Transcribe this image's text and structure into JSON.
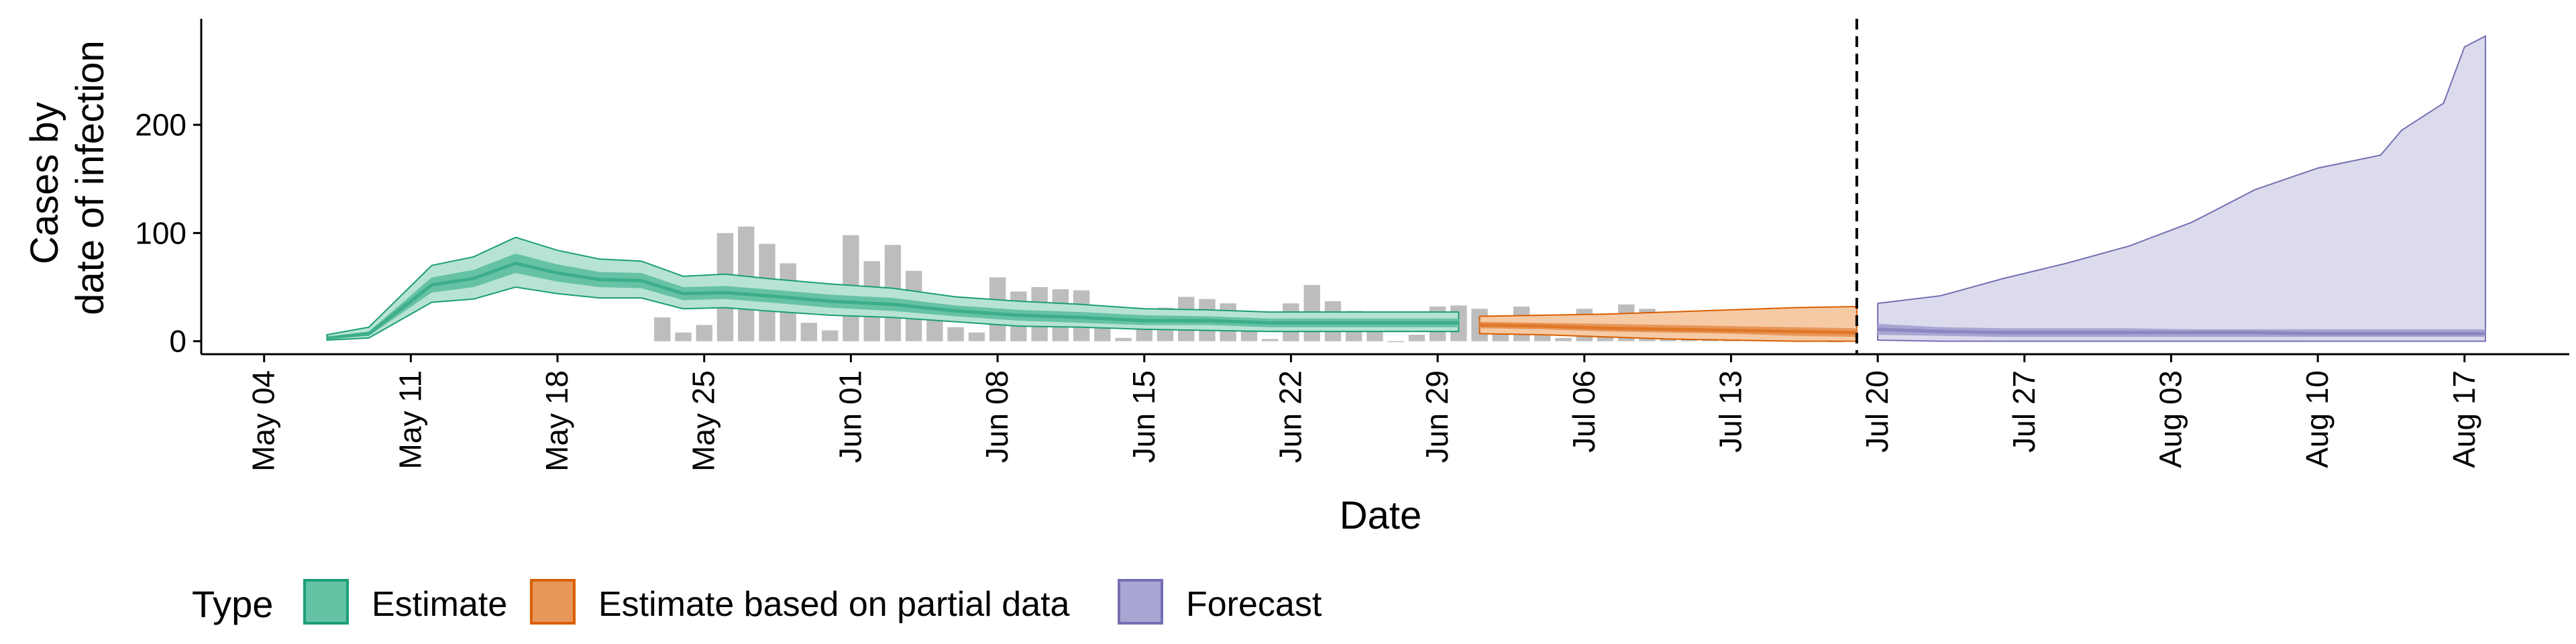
{
  "chart_data": {
    "type": "area",
    "xlabel": "Date",
    "ylabel_lines": [
      "Cases by",
      "date of infection"
    ],
    "xlim": [
      "2020-05-01",
      "2020-08-22"
    ],
    "ylim": [
      -12,
      298
    ],
    "y_ticks": [
      0,
      100,
      200
    ],
    "x_ticks": [
      "2020-05-04",
      "2020-05-11",
      "2020-05-18",
      "2020-05-25",
      "2020-06-01",
      "2020-06-08",
      "2020-06-15",
      "2020-06-22",
      "2020-06-29",
      "2020-07-06",
      "2020-07-13",
      "2020-07-20",
      "2020-07-27",
      "2020-08-03",
      "2020-08-10",
      "2020-08-17"
    ],
    "x_tick_labels": [
      "May 04",
      "May 11",
      "May 18",
      "May 25",
      "Jun 01",
      "Jun 08",
      "Jun 15",
      "Jun 22",
      "Jun 29",
      "Jul 06",
      "Jul 13",
      "Jul 20",
      "Jul 27",
      "Aug 03",
      "Aug 10",
      "Aug 17"
    ],
    "vline_date": "2020-07-19",
    "grid": false,
    "legend": {
      "title": "Type",
      "position": "bottom-left",
      "entries": [
        {
          "label": "Estimate",
          "fill": "#66c2a5",
          "stroke": "#1b9e77"
        },
        {
          "label": "Estimate based on partial data",
          "fill": "#e8975a",
          "stroke": "#d95f02"
        },
        {
          "label": "Forecast",
          "fill": "#a8a5d3",
          "stroke": "#7570b3"
        }
      ]
    },
    "colors": {
      "estimate_outer": "#b7e3d4",
      "estimate_inner": "#66c2a5",
      "estimate_line": "#1b9e77",
      "partial_outer": "#f5caa5",
      "partial_inner": "#e8975a",
      "partial_line": "#d95f02",
      "forecast_outer": "#dcdbed",
      "forecast_inner": "#a8a5d3",
      "forecast_line": "#7570b3",
      "bars": "#bdbdbd"
    },
    "observed_cases": {
      "x": [
        "2020-05-23",
        "2020-05-24",
        "2020-05-25",
        "2020-05-26",
        "2020-05-27",
        "2020-05-28",
        "2020-05-29",
        "2020-05-30",
        "2020-05-31",
        "2020-06-01",
        "2020-06-02",
        "2020-06-03",
        "2020-06-04",
        "2020-06-05",
        "2020-06-06",
        "2020-06-07",
        "2020-06-08",
        "2020-06-09",
        "2020-06-10",
        "2020-06-11",
        "2020-06-12",
        "2020-06-13",
        "2020-06-14",
        "2020-06-15",
        "2020-06-16",
        "2020-06-17",
        "2020-06-18",
        "2020-06-19",
        "2020-06-20",
        "2020-06-21",
        "2020-06-22",
        "2020-06-23",
        "2020-06-24",
        "2020-06-25",
        "2020-06-26",
        "2020-06-27",
        "2020-06-28",
        "2020-06-29",
        "2020-06-30",
        "2020-07-01",
        "2020-07-02",
        "2020-07-03",
        "2020-07-04",
        "2020-07-05",
        "2020-07-06",
        "2020-07-07",
        "2020-07-08",
        "2020-07-09",
        "2020-07-10",
        "2020-07-11",
        "2020-07-12",
        "2020-07-13",
        "2020-07-14",
        "2020-07-15",
        "2020-07-16",
        "2020-07-17",
        "2020-07-18"
      ],
      "values": [
        22,
        8,
        15,
        100,
        106,
        90,
        72,
        17,
        10,
        98,
        74,
        89,
        65,
        28,
        13,
        8,
        59,
        46,
        50,
        48,
        47,
        22,
        3,
        25,
        31,
        41,
        39,
        35,
        17,
        2,
        35,
        52,
        37,
        28,
        21,
        0,
        6,
        32,
        33,
        30,
        21,
        32,
        10,
        3,
        30,
        25,
        34,
        30,
        17,
        9,
        3,
        17,
        25,
        25,
        16,
        8,
        0
      ]
    },
    "estimate": {
      "x": [
        "2020-05-07",
        "2020-05-09",
        "2020-05-12",
        "2020-05-14",
        "2020-05-16",
        "2020-05-18",
        "2020-05-20",
        "2020-05-22",
        "2020-05-24",
        "2020-05-26",
        "2020-05-28",
        "2020-05-31",
        "2020-06-03",
        "2020-06-06",
        "2020-06-09",
        "2020-06-12",
        "2020-06-15",
        "2020-06-18",
        "2020-06-21",
        "2020-06-24",
        "2020-06-27",
        "2020-06-30"
      ],
      "median": [
        3,
        7,
        52,
        58,
        72,
        63,
        57,
        56,
        44,
        45,
        42,
        37,
        34,
        28,
        24,
        22,
        19,
        19,
        17,
        17,
        17,
        17
      ],
      "lower_50": [
        2,
        5,
        45,
        50,
        63,
        55,
        50,
        49,
        38,
        39,
        36,
        31,
        28,
        23,
        19,
        17,
        15,
        15,
        13,
        13,
        13,
        13
      ],
      "upper_50": [
        4,
        9,
        59,
        66,
        81,
        71,
        64,
        63,
        50,
        51,
        48,
        43,
        40,
        33,
        29,
        27,
        24,
        23,
        21,
        21,
        21,
        21
      ],
      "lower_90": [
        1,
        3,
        36,
        39,
        50,
        44,
        40,
        40,
        30,
        31,
        28,
        24,
        22,
        18,
        14,
        13,
        11,
        10,
        9,
        9,
        9,
        9
      ],
      "upper_90": [
        6,
        13,
        70,
        78,
        96,
        84,
        76,
        74,
        60,
        62,
        58,
        53,
        49,
        41,
        37,
        34,
        30,
        29,
        27,
        27,
        27,
        27
      ]
    },
    "estimate_partial": {
      "x": [
        "2020-07-01",
        "2020-07-04",
        "2020-07-07",
        "2020-07-10",
        "2020-07-13",
        "2020-07-16",
        "2020-07-19"
      ],
      "median": [
        15,
        14,
        12,
        11,
        10,
        9,
        8
      ],
      "lower_50": [
        12,
        11,
        9,
        8,
        7,
        5,
        4
      ],
      "upper_50": [
        18,
        17,
        16,
        15,
        14,
        13,
        12
      ],
      "lower_90": [
        7,
        6,
        4,
        2,
        1,
        0,
        0
      ],
      "upper_90": [
        23,
        24,
        25,
        27,
        29,
        31,
        32
      ]
    },
    "forecast": {
      "x": [
        "2020-07-20",
        "2020-07-23",
        "2020-07-26",
        "2020-07-29",
        "2020-08-01",
        "2020-08-04",
        "2020-08-07",
        "2020-08-10",
        "2020-08-13",
        "2020-08-14",
        "2020-08-16",
        "2020-08-17",
        "2020-08-18"
      ],
      "median": [
        11,
        9,
        8,
        8,
        8,
        8,
        8,
        7,
        7,
        7,
        7,
        7,
        7
      ],
      "lower_50": [
        6,
        5,
        4,
        4,
        4,
        4,
        4,
        4,
        4,
        4,
        4,
        4,
        4
      ],
      "upper_50": [
        16,
        13,
        12,
        12,
        12,
        11,
        11,
        11,
        11,
        11,
        11,
        11,
        11
      ],
      "lower_90": [
        1,
        0,
        0,
        0,
        0,
        0,
        0,
        0,
        0,
        0,
        0,
        0,
        0
      ],
      "upper_90": [
        35,
        42,
        58,
        72,
        88,
        110,
        140,
        160,
        172,
        195,
        220,
        272,
        282
      ]
    }
  }
}
